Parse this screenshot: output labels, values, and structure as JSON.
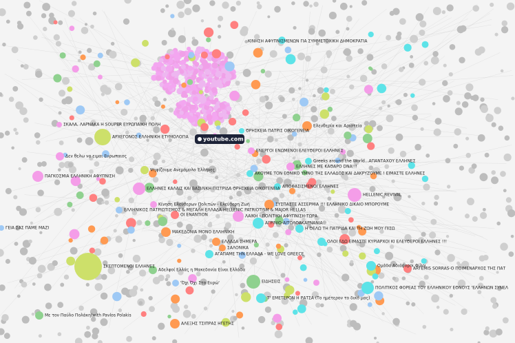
{
  "nodes": [
    {
      "label": "ΚΙΝΗΣΗ ΑΦΥΠΝΙΣΜΕΝΩΝ ΓΙΑ ΣΥΜΜΕΤΟΧΙΚΗ ΔΗΜΟΚΡΑΤΙΑ"
    },
    {
      "label": "ΣΚΑΛΑ, ΛΑΡΝΑΚΑ Η SOUPER ΕΥΡΩΠΑΙΚΗ ΠΟΛΗ"
    },
    {
      "label": "ΘΡΗΣΚΕΙΑ ΠΑΤΡΙΣ ΟΙΚΟΓΕΝΕΙΑ"
    },
    {
      "label": "Ελευθερία και Αριστεία"
    },
    {
      "label": "ΑΡΧΕΓΟΝΟΣ ΕΛΛΗΝΙΚΗ ΕΤΥΜΟΛΟΓΙΑ"
    },
    {
      "label": "youtube.com"
    },
    {
      "label": "ΕΝΕΡΓΟΙ ΕΝΩΜΕΝΟΙ ΕΛΕΥΘΕΡΟΙ ΕΛΛΗΝΕΣ"
    },
    {
      "label": "Δεν θελω να ειμαι Ευρωπαιος"
    },
    {
      "label": "Greeks around the World...ΑΠΑΝΤΑΧΟΥ ΕΛΛΗΝΕΣ"
    },
    {
      "label": "ΕΛΛΗΝΕΣ ΜΕ ΚΑΘΑΡΟ DNA!!!"
    },
    {
      "label": "Ψηφίζουμε Ανεμόμυλο Έλληνες"
    },
    {
      "label": "ΠΑΓΚΟΣΜΙΑ ΕΛΛΗΝΙΚΗ ΑΦΥΠΝΙΣΗ"
    },
    {
      "label": "ΑΚΟΥΜΕ ΤΟΝ ΕΘΝΙΚΟ ΥΜΝΟ ΤΗΣ ΕΛΛΑΔΟΣ ΚΑΙ ΔΑΚΡΥΖΟΥΜΕ ! ΕΙΜΑΣΤΕ ΕΛΛΗΝΕΣ"
    },
    {
      "label": "ΕΛΛΗΝΕΣ ΚΑΛΑΙΣ ΚΑΙ ΒΑΣΙΛΙΚΗ ΠΙΣΤΡΙΔΑ ΘΡΗΣΚΕΙΑ ΟΙΚΟΓΕΝΕΙΑ"
    },
    {
      "label": "ΑΠΟΦΑΣΙΣΜΕΝΟΙ ΕΛΛΗΝΕΣ"
    },
    {
      "label": "HELLENIC REVIVAL"
    },
    {
      "label": "Κίνηση Ελεύθερων Πολιτών - Ελεύθερη Ζωή"
    },
    {
      "label": "ΣΥΣΠΑΣΤΕ ΑΣΣΕΡΜΙΑ !!! ΕΛΛΗΝΙΚΟ ΔΙΚΑΙΟ ΜΠΟΡΟΥΜΕ"
    },
    {
      "label": "ΕΛΛΗΝΙΚΟΣ ΠΑΤΡΙΩΤΙΣΜΟΣ & ΜΕΓΑΛΗ ΕΛΛΑΔΑ HELLENIC PATRIOTISM & MAJOR HELLAS"
    },
    {
      "label": "ΟΙ ΕΝΑΝΤΙΟΝ"
    },
    {
      "label": "ΛΑΙΚΗ - ΠΟΛΙΤΙΚΗ ΑΦΥΠΝΙΣΗ-ΤΩΡΑ"
    },
    {
      "label": "ΑΓΡΙΝΙΟ-ΑΙΤΩΛΟΑΚΑΡΝΑΝΙΑ"
    },
    {
      "label": "Η ΘΕΛΩ ΤΗ ΠΑΤΡΙΔΑ ΚΑΙ ΤΗ ΖΩΗ ΜΟΥ ΠΙΣΩ"
    },
    {
      "label": "ΓΕΙΑ ΣΑΣ ΠΑΜΕ ΜΑΖΙ"
    },
    {
      "label": "ΜΑΚΕΔΟΝΙΑ ΜΟΝΟ ΕΛΛΗΝΙΚΗ"
    },
    {
      "label": "ΕΛΛΑΔΑ ΣΗΜΕΡΑ"
    },
    {
      "label": "ΟΛΟΙ ΕΔΩ ΕΙΜΑΣΤΕ ΚΥΡΙΑΡΧΟΙ ΚΙ ΕΛΕΥΘΕΡΟΙ ΕΛΛΗΝΕΣ !!!"
    },
    {
      "label": "ΣΑΛΟΝΙΚΑ"
    },
    {
      "label": "ΑΓΑΠΑΜΕ ΤΗΝ ΕΛΛΑΔΑ - WE LOVE GREECE"
    },
    {
      "label": "ΣΚΕΠΤΟΜΕΝΟΙ ΕΛΛΗΝΕΣ"
    },
    {
      "label": "Αδελφοί Ελλάς η Μακεδονία Είναι Ελλάδα"
    },
    {
      "label": "Ομάδα Αδιάφοροι Φίλοι"
    },
    {
      "label": "ARTEMIS SORRAS-Ο ΠΟΙΜΕΝΑΡΧΟΣ ΤΗΣ ΠΑΤ"
    },
    {
      "label": "ΕΙΔΗΣΕΙΣ"
    },
    {
      "label": "'Όχι Όχι Στο Ευρώ'"
    },
    {
      "label": "ΠΟΛΙΤΙΚΟΣ ΦΟΡΕΑΣ ΤΟΥ ΕΛΛΗΝΙΚΟΥ ΕΘΝΟΥΣ 'ΕΛΛΗΝΩΝ ΣΥΝΕΛ"
    },
    {
      "label": "Τ' ΕΜΕΤΕΡΟΝ Η ΡΑΤΣΑ (Το ημέτερον το δικό μας)"
    },
    {
      "label": "Με τον Παύλο Πολάκη(with Pavlos Polakis"
    },
    {
      "label": "ΑΛΕΞΗΣ ΤΣΙΠΡΑΣ ΗΓΕΤΗΣ"
    }
  ]
}
